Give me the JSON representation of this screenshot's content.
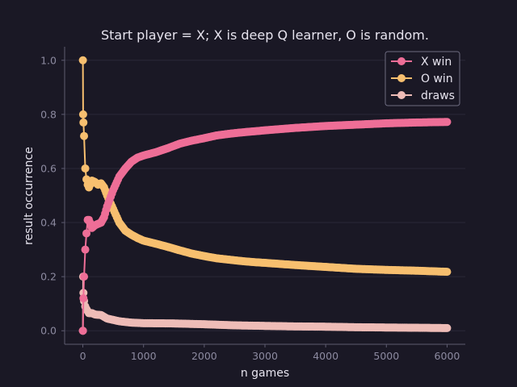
{
  "chart_data": {
    "type": "line",
    "title": "Start player = X; X is deep Q learner, O is random.",
    "xlabel": "n games",
    "ylabel": "result occurrence",
    "xlim": [
      -300,
      6300
    ],
    "ylim": [
      -0.05,
      1.05
    ],
    "x_ticks": [
      0,
      1000,
      2000,
      3000,
      4000,
      5000,
      6000
    ],
    "y_ticks": [
      0.0,
      0.2,
      0.4,
      0.6,
      0.8,
      1.0
    ],
    "x_tick_labels": [
      "0",
      "1000",
      "2000",
      "3000",
      "4000",
      "5000",
      "6000"
    ],
    "y_tick_labels": [
      "0.0",
      "0.2",
      "0.4",
      "0.6",
      "0.8",
      "1.0"
    ],
    "grid": "horizontal",
    "legend_position": "top-right",
    "series": [
      {
        "name": "X win",
        "color": "#ee6e97",
        "points": [
          [
            1,
            0.0
          ],
          [
            10,
            0.12
          ],
          [
            20,
            0.2
          ],
          [
            40,
            0.3
          ],
          [
            60,
            0.36
          ],
          [
            80,
            0.41
          ],
          [
            100,
            0.41
          ],
          [
            150,
            0.38
          ],
          [
            200,
            0.39
          ],
          [
            300,
            0.4
          ],
          [
            350,
            0.42
          ],
          [
            400,
            0.46
          ],
          [
            500,
            0.52
          ],
          [
            600,
            0.57
          ],
          [
            700,
            0.6
          ],
          [
            800,
            0.625
          ],
          [
            900,
            0.64
          ],
          [
            1000,
            0.648
          ],
          [
            1200,
            0.66
          ],
          [
            1400,
            0.675
          ],
          [
            1600,
            0.692
          ],
          [
            1800,
            0.703
          ],
          [
            2000,
            0.712
          ],
          [
            2200,
            0.722
          ],
          [
            2400,
            0.728
          ],
          [
            2600,
            0.733
          ],
          [
            2800,
            0.737
          ],
          [
            3000,
            0.741
          ],
          [
            3500,
            0.75
          ],
          [
            4000,
            0.757
          ],
          [
            4500,
            0.762
          ],
          [
            5000,
            0.767
          ],
          [
            5500,
            0.77
          ],
          [
            6000,
            0.772
          ]
        ]
      },
      {
        "name": "O win",
        "color": "#f7bf6f",
        "points": [
          [
            1,
            1.0
          ],
          [
            5,
            0.8
          ],
          [
            10,
            0.77
          ],
          [
            20,
            0.72
          ],
          [
            40,
            0.6
          ],
          [
            60,
            0.56
          ],
          [
            80,
            0.54
          ],
          [
            100,
            0.53
          ],
          [
            150,
            0.555
          ],
          [
            200,
            0.55
          ],
          [
            250,
            0.54
          ],
          [
            300,
            0.545
          ],
          [
            350,
            0.53
          ],
          [
            400,
            0.5
          ],
          [
            500,
            0.45
          ],
          [
            600,
            0.4
          ],
          [
            700,
            0.37
          ],
          [
            800,
            0.355
          ],
          [
            900,
            0.343
          ],
          [
            1000,
            0.333
          ],
          [
            1200,
            0.322
          ],
          [
            1400,
            0.31
          ],
          [
            1600,
            0.297
          ],
          [
            1800,
            0.285
          ],
          [
            2000,
            0.276
          ],
          [
            2200,
            0.268
          ],
          [
            2400,
            0.263
          ],
          [
            2600,
            0.258
          ],
          [
            2800,
            0.254
          ],
          [
            3000,
            0.251
          ],
          [
            3500,
            0.243
          ],
          [
            4000,
            0.236
          ],
          [
            4500,
            0.229
          ],
          [
            5000,
            0.225
          ],
          [
            5500,
            0.222
          ],
          [
            6000,
            0.218
          ]
        ]
      },
      {
        "name": "draws",
        "color": "#eebcb7",
        "points": [
          [
            1,
            0.0
          ],
          [
            5,
            0.2
          ],
          [
            10,
            0.14
          ],
          [
            20,
            0.11
          ],
          [
            40,
            0.09
          ],
          [
            60,
            0.08
          ],
          [
            100,
            0.065
          ],
          [
            150,
            0.065
          ],
          [
            200,
            0.06
          ],
          [
            300,
            0.058
          ],
          [
            400,
            0.045
          ],
          [
            500,
            0.04
          ],
          [
            600,
            0.035
          ],
          [
            800,
            0.03
          ],
          [
            1000,
            0.028
          ],
          [
            1500,
            0.027
          ],
          [
            2000,
            0.024
          ],
          [
            2500,
            0.02
          ],
          [
            3000,
            0.018
          ],
          [
            3500,
            0.016
          ],
          [
            4000,
            0.015
          ],
          [
            4500,
            0.013
          ],
          [
            5000,
            0.012
          ],
          [
            5500,
            0.011
          ],
          [
            6000,
            0.01
          ]
        ]
      }
    ]
  }
}
